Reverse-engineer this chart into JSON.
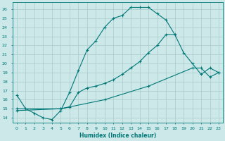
{
  "xlabel": "Humidex (Indice chaleur)",
  "bg_color": "#cce8e8",
  "line_color": "#007777",
  "grid_color": "#aacccc",
  "xlim": [
    -0.5,
    23.5
  ],
  "ylim": [
    13.5,
    26.8
  ],
  "xticks": [
    0,
    1,
    2,
    3,
    4,
    5,
    6,
    7,
    8,
    9,
    10,
    11,
    12,
    13,
    14,
    15,
    16,
    17,
    18,
    19,
    20,
    21,
    22,
    23
  ],
  "yticks": [
    14,
    15,
    16,
    17,
    18,
    19,
    20,
    21,
    22,
    23,
    24,
    25,
    26
  ],
  "line1": {
    "x": [
      0,
      1,
      2,
      3,
      4,
      5,
      6,
      7,
      8,
      9,
      10,
      11,
      12,
      13,
      14,
      15,
      16,
      17,
      18
    ],
    "y": [
      16.5,
      15.0,
      14.5,
      14.0,
      13.8,
      14.8,
      16.8,
      19.2,
      21.5,
      22.5,
      24.0,
      25.0,
      25.3,
      26.2,
      26.2,
      26.2,
      25.5,
      24.8,
      23.2
    ]
  },
  "line2": {
    "x": [
      0,
      5,
      6,
      7,
      8,
      9,
      10,
      11,
      12,
      13,
      14,
      15,
      16,
      17,
      18,
      19,
      20,
      21,
      22,
      23
    ],
    "y": [
      15.0,
      15.0,
      15.2,
      16.8,
      17.3,
      17.5,
      17.8,
      18.2,
      18.8,
      19.5,
      20.2,
      21.2,
      22.0,
      23.2,
      23.2,
      21.2,
      20.0,
      18.8,
      19.5,
      19.0
    ]
  },
  "line3": {
    "x": [
      0,
      5,
      10,
      15,
      20,
      21,
      22,
      23
    ],
    "y": [
      14.8,
      15.0,
      16.0,
      17.5,
      19.5,
      19.5,
      18.5,
      19.0
    ]
  }
}
